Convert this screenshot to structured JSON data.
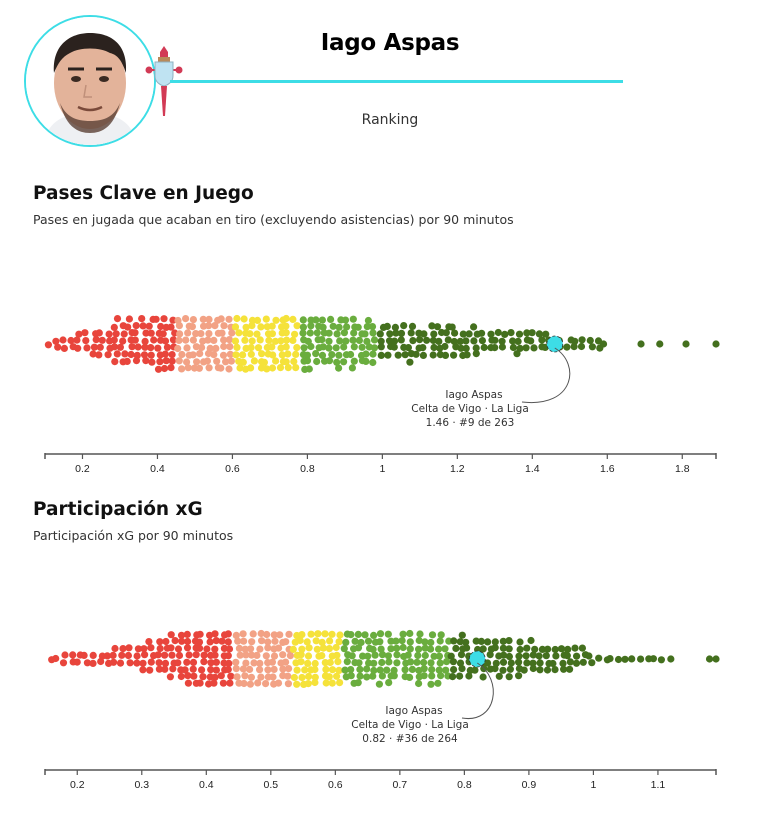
{
  "header": {
    "player_name": "Iago Aspas",
    "subtitle": "Ranking",
    "accent_color": "#3ddde6",
    "avatar_icon": "player-photo",
    "badge_icon": "celta-vigo-crest"
  },
  "sections": [
    {
      "title": "Pases Clave en Juego",
      "description": "Pases en jugada que acaban en tiro (excluyendo asistencias) por 90 minutos",
      "annotation": {
        "name": "Iago Aspas",
        "team": "Celta de Vigo · La Liga",
        "stat": "1.46 · #9 de 263"
      }
    },
    {
      "title": "Participación xG",
      "description": "Participación xG por 90 minutos",
      "annotation": {
        "name": "Iago Aspas",
        "team": "Celta de Vigo · La Liga",
        "stat": "0.82 · #36 de 264"
      }
    }
  ],
  "colors": {
    "red": "#e8453c",
    "salmon": "#f2a285",
    "yellow": "#f5e23a",
    "lightgreen": "#6aad3e",
    "darkgreen": "#44701e",
    "highlight": "#3ddde6"
  },
  "chart_data": [
    {
      "type": "scatter",
      "subtype": "beeswarm",
      "title": "Pases Clave en Juego",
      "subtitle": "Pases en jugada que acaban en tiro (excluyendo asistencias) por 90 minutos",
      "xlabel": "",
      "xlim": [
        0.1,
        1.89
      ],
      "xticks": [
        0.2,
        0.4,
        0.6,
        0.8,
        1,
        1.2,
        1.4,
        1.6,
        1.8
      ],
      "xtick_labels": [
        "0.2",
        "0.4",
        "0.6",
        "0.8",
        "1",
        "1.2",
        "1.4",
        "1.6",
        "1.8"
      ],
      "n_players": 263,
      "highlight": {
        "name": "Iago Aspas",
        "value": 1.46,
        "rank": 9,
        "of": 263
      },
      "color_bands": [
        {
          "color": "red",
          "range": [
            0.1,
            0.45
          ]
        },
        {
          "color": "salmon",
          "range": [
            0.45,
            0.6
          ]
        },
        {
          "color": "yellow",
          "range": [
            0.6,
            0.76
          ]
        },
        {
          "color": "lightgreen",
          "range": [
            0.76,
            0.98
          ]
        },
        {
          "color": "darkgreen",
          "range": [
            0.98,
            1.89
          ]
        }
      ],
      "outliers_high": [
        1.59,
        1.69,
        1.74,
        1.81,
        1.89
      ],
      "grid": false,
      "legend": "none"
    },
    {
      "type": "scatter",
      "subtype": "beeswarm",
      "title": "Participación xG",
      "subtitle": "Participación xG por 90 minutos",
      "xlabel": "",
      "xlim": [
        0.15,
        1.19
      ],
      "xticks": [
        0.2,
        0.3,
        0.4,
        0.5,
        0.6,
        0.7,
        0.8,
        0.9,
        1,
        1.1
      ],
      "xtick_labels": [
        "0.2",
        "0.3",
        "0.4",
        "0.5",
        "0.6",
        "0.7",
        "0.8",
        "0.9",
        "1",
        "1.1"
      ],
      "n_players": 264,
      "highlight": {
        "name": "Iago Aspas",
        "value": 0.82,
        "rank": 36,
        "of": 264
      },
      "color_bands": [
        {
          "color": "red",
          "range": [
            0.15,
            0.44
          ]
        },
        {
          "color": "salmon",
          "range": [
            0.44,
            0.53
          ]
        },
        {
          "color": "yellow",
          "range": [
            0.53,
            0.61
          ]
        },
        {
          "color": "lightgreen",
          "range": [
            0.61,
            0.77
          ]
        },
        {
          "color": "darkgreen",
          "range": [
            0.77,
            1.19
          ]
        }
      ],
      "outliers_high": [
        1.12,
        1.18,
        1.19
      ],
      "grid": false,
      "legend": "none"
    }
  ]
}
